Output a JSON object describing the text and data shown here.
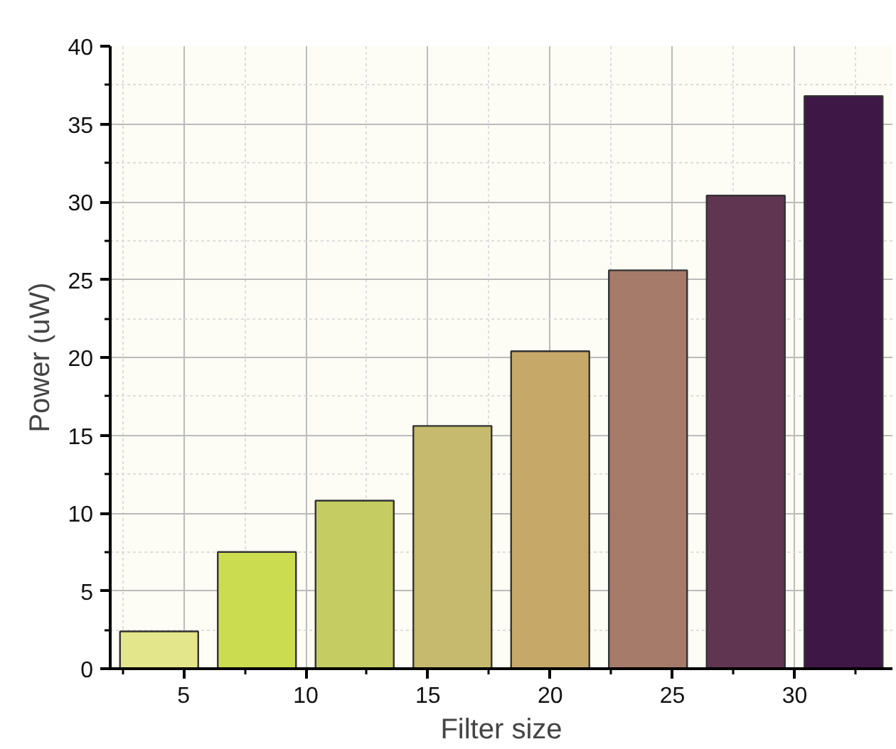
{
  "chart_data": {
    "type": "bar",
    "xlabel": "Filter size",
    "ylabel": "Power (uW)",
    "x": [
      4,
      8,
      12,
      16,
      20,
      24,
      28,
      32
    ],
    "values": [
      2.4,
      7.5,
      10.8,
      15.6,
      20.4,
      25.6,
      30.4,
      36.8
    ],
    "colors": [
      "#e3e68a",
      "#cbdc50",
      "#c5cd62",
      "#c5ba6d",
      "#c6a869",
      "#a77b69",
      "#603551",
      "#3f1747"
    ],
    "xlim": [
      2,
      34
    ],
    "xticks": [
      {
        "value": 2.5,
        "label": null
      },
      5,
      {
        "value": 7.5,
        "label": null
      },
      10,
      {
        "value": 12.5,
        "label": null
      },
      15,
      {
        "value": 17.5,
        "label": null
      },
      20,
      {
        "value": 22.5,
        "label": null
      },
      25,
      {
        "value": 27.5,
        "label": null
      },
      30,
      {
        "value": 32.5,
        "label": null
      }
    ],
    "ylim": [
      0,
      40
    ],
    "yticks": [
      0,
      {
        "value": 2.5,
        "label": null
      },
      5,
      {
        "value": 7.5,
        "label": null
      },
      10,
      {
        "value": 12.5,
        "label": null
      },
      15,
      {
        "value": 17.5,
        "label": null
      },
      20,
      {
        "value": 22.5,
        "label": null
      },
      25,
      {
        "value": 27.5,
        "label": null
      },
      30,
      {
        "value": 32.5,
        "label": null
      },
      35,
      {
        "value": 37.5,
        "label": null
      },
      40
    ],
    "grid": true
  }
}
